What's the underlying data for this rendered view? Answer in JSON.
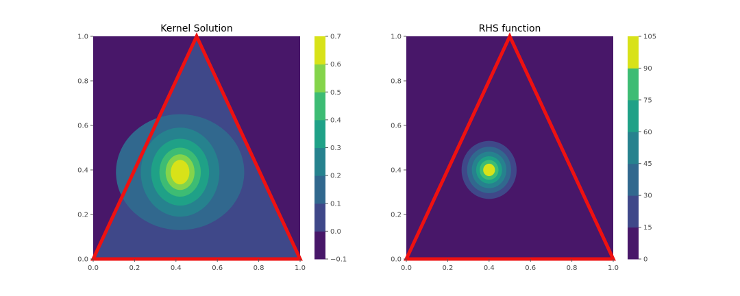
{
  "chart_data": [
    {
      "type": "contour",
      "title": "Kernel Solution",
      "xlabel": "",
      "ylabel": "",
      "xlim": [
        0.0,
        1.0
      ],
      "ylim": [
        0.0,
        1.0
      ],
      "xticks": [
        "0.0",
        "0.2",
        "0.4",
        "0.6",
        "0.8",
        "1.0"
      ],
      "yticks": [
        "0.0",
        "0.2",
        "0.4",
        "0.6",
        "0.8",
        "1.0"
      ],
      "colorbar": {
        "levels": [
          -0.1,
          0.0,
          0.1,
          0.2,
          0.3,
          0.4,
          0.5,
          0.6,
          0.7
        ],
        "tick_labels": [
          "−0.1",
          "0.0",
          "0.1",
          "0.2",
          "0.3",
          "0.4",
          "0.5",
          "0.6",
          "0.7"
        ],
        "colors": [
          "#481769",
          "#3f4889",
          "#31688e",
          "#26828e",
          "#1fa187",
          "#3dbc74",
          "#84d44b",
          "#d8e219"
        ]
      },
      "field": {
        "peak_value": 0.68,
        "peak_center": [
          0.42,
          0.39
        ],
        "contour_semi_axes": [
          [
            0.31,
            0.26
          ],
          [
            0.19,
            0.2
          ],
          [
            0.14,
            0.15
          ],
          [
            0.1,
            0.11
          ],
          [
            0.07,
            0.08
          ],
          [
            0.045,
            0.055
          ]
        ],
        "inside_triangle_min_level_index": 1
      },
      "boundary": {
        "vertices": [
          [
            0,
            0
          ],
          [
            0.5,
            1.0
          ],
          [
            1.0,
            0
          ]
        ],
        "color": "#ee1111"
      },
      "grid": false,
      "legend": "none"
    },
    {
      "type": "contour",
      "title": "RHS function",
      "xlabel": "",
      "ylabel": "",
      "xlim": [
        0.0,
        1.0
      ],
      "ylim": [
        0.0,
        1.0
      ],
      "xticks": [
        "0.0",
        "0.2",
        "0.4",
        "0.6",
        "0.8",
        "1.0"
      ],
      "yticks": [
        "0.0",
        "0.2",
        "0.4",
        "0.6",
        "0.8",
        "1.0"
      ],
      "colorbar": {
        "levels": [
          0,
          15,
          30,
          45,
          60,
          75,
          90,
          105
        ],
        "tick_labels": [
          "0",
          "15",
          "30",
          "45",
          "60",
          "75",
          "90",
          "105"
        ],
        "colors": [
          "#481769",
          "#3f4889",
          "#31688e",
          "#26828e",
          "#1fa187",
          "#3dbc74",
          "#d8e219"
        ]
      },
      "field": {
        "peak_value": 100,
        "peak_center": [
          0.4,
          0.4
        ],
        "contour_radii": [
          0.14,
          0.112,
          0.088,
          0.066,
          0.048,
          0.03
        ],
        "inside_triangle_min_level_index": 0
      },
      "boundary": {
        "vertices": [
          [
            0,
            0
          ],
          [
            0.5,
            1.0
          ],
          [
            1.0,
            0
          ]
        ],
        "color": "#ee1111"
      },
      "grid": false,
      "legend": "none"
    }
  ]
}
